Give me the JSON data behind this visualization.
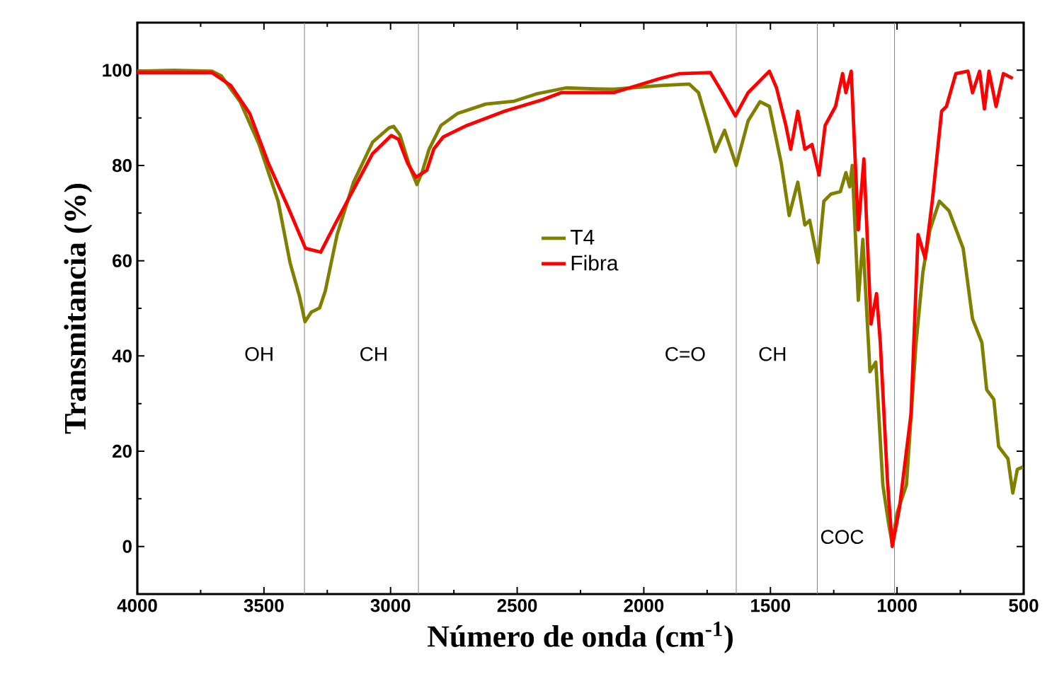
{
  "chart_data": {
    "type": "line",
    "xlabel": "Número de onda (cm$^{-1}$)",
    "ylabel": "Transmitancia (%)",
    "xlim": [
      4000,
      500
    ],
    "ylim": [
      -10,
      110
    ],
    "xticks": [
      4000,
      3500,
      3000,
      2500,
      2000,
      1500,
      1000,
      500
    ],
    "yticks": [
      0,
      20,
      40,
      60,
      80,
      100
    ],
    "legend": "center",
    "grid": false,
    "marker": "none",
    "line_style": "solid",
    "series": [
      {
        "name": "T4",
        "color": "#808000",
        "x": [
          4000,
          3854,
          3705,
          3668,
          3593,
          3519,
          3444,
          3397,
          3360,
          3338,
          3313,
          3280,
          3258,
          3211,
          3146,
          3071,
          3006,
          2988,
          2963,
          2922,
          2896,
          2876,
          2848,
          2801,
          2736,
          2624,
          2512,
          2419,
          2307,
          2196,
          2119,
          1933,
          1821,
          1784,
          1746,
          1718,
          1681,
          1635,
          1588,
          1541,
          1504,
          1457,
          1426,
          1392,
          1364,
          1345,
          1312,
          1289,
          1261,
          1224,
          1202,
          1187,
          1177,
          1153,
          1135,
          1107,
          1084,
          1056,
          1034,
          1019,
          1000,
          963,
          925,
          898,
          870,
          833,
          795,
          739,
          702,
          665,
          646,
          618,
          599,
          562,
          543,
          525,
          503
        ],
        "values": [
          99.8,
          100,
          99.8,
          98.8,
          93.3,
          84.4,
          72.5,
          59.6,
          52.6,
          47.2,
          49.2,
          50.1,
          53.6,
          65.5,
          76.5,
          84.9,
          87.9,
          88.2,
          86.4,
          79.4,
          76,
          78.5,
          83.4,
          88.4,
          90.9,
          92.9,
          93.5,
          95.1,
          96.3,
          96.1,
          96,
          96.8,
          97.1,
          95.3,
          88.4,
          82.9,
          87.4,
          80,
          89.4,
          93.4,
          92.4,
          80.4,
          69.5,
          76.5,
          67.5,
          68.5,
          59.6,
          72.5,
          74,
          74.5,
          78.5,
          75.5,
          80,
          51.7,
          64.5,
          36.7,
          38.7,
          12.9,
          5,
          0.5,
          7,
          12.9,
          42.7,
          57.6,
          66.5,
          72.5,
          70.5,
          62.6,
          47.8,
          42.8,
          32.9,
          30.9,
          21,
          18.4,
          11.2,
          16.2,
          16.7
        ]
      },
      {
        "name": "Fibra",
        "color": "#ff0000",
        "x": [
          4000,
          3705,
          3631,
          3556,
          3482,
          3407,
          3351,
          3336,
          3276,
          3220,
          3146,
          3071,
          2997,
          2969,
          2932,
          2900,
          2857,
          2829,
          2792,
          2699,
          2550,
          2400,
          2326,
          2196,
          2119,
          1933,
          1858,
          1737,
          1690,
          1638,
          1588,
          1504,
          1476,
          1439,
          1420,
          1392,
          1364,
          1336,
          1308,
          1284,
          1243,
          1215,
          1202,
          1181,
          1153,
          1131,
          1103,
          1081,
          1066,
          1038,
          1019,
          991,
          945,
          917,
          889,
          861,
          824,
          805,
          768,
          720,
          702,
          674,
          655,
          637,
          609,
          580,
          543
        ],
        "values": [
          99.5,
          99.5,
          96.8,
          90.9,
          80.4,
          71.5,
          64.5,
          62.6,
          61.8,
          67.6,
          75,
          82.5,
          86.3,
          85.5,
          80.4,
          77.5,
          79,
          83.5,
          86,
          88.4,
          91.4,
          93.8,
          95.3,
          95.3,
          95.3,
          98.3,
          99.3,
          99.5,
          95.3,
          90.4,
          95.3,
          99.8,
          96.3,
          88.4,
          83.4,
          91.4,
          83.4,
          84.4,
          78,
          88.4,
          92.4,
          99.3,
          95.3,
          99.8,
          66.5,
          81.4,
          46.7,
          53.1,
          42.7,
          13.9,
          0,
          7.9,
          27.8,
          65.5,
          60.5,
          72.5,
          91.4,
          92.4,
          99.3,
          99.8,
          95.3,
          99.8,
          91.9,
          99.8,
          92.4,
          99.3,
          98.3
        ]
      }
    ],
    "ref_lines": [
      {
        "axis": "x",
        "value": 3340,
        "color": "#808080",
        "label": "OH"
      },
      {
        "axis": "x",
        "value": 2890,
        "color": "#808080",
        "label": "CH"
      },
      {
        "axis": "x",
        "value": 1635,
        "color": "#808080",
        "label": "C=O"
      },
      {
        "axis": "x",
        "value": 1315,
        "color": "#808080",
        "label": "CH"
      },
      {
        "axis": "x",
        "value": 1010,
        "color": "#808080",
        "label": "COC"
      }
    ]
  }
}
